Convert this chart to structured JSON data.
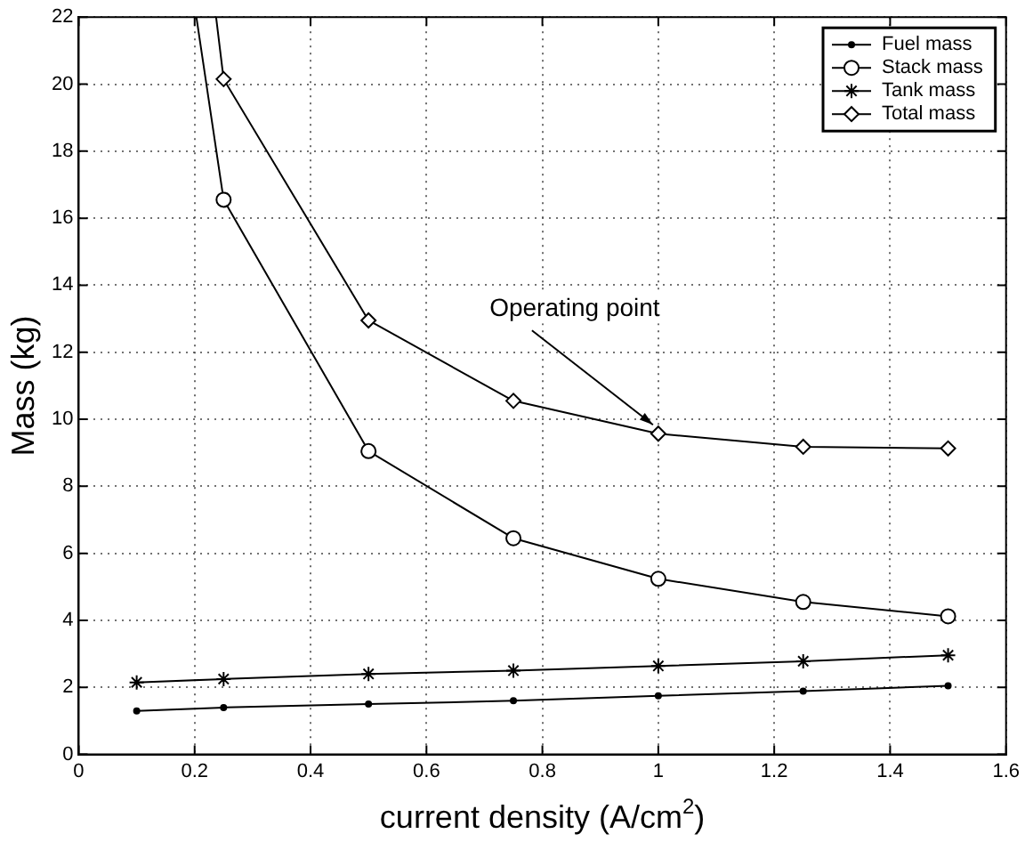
{
  "chart_data": {
    "type": "line",
    "xlabel": "current density (A/cm$^{2}$)",
    "ylabel": "Mass (kg)",
    "xlim": [
      0,
      1.6
    ],
    "xticks": [
      0,
      0.2,
      0.4,
      0.6,
      0.8,
      1,
      1.2,
      1.4,
      1.6
    ],
    "ylim": [
      0,
      22
    ],
    "yticks": [
      0,
      2,
      4,
      6,
      8,
      10,
      12,
      14,
      16,
      18,
      20,
      22
    ],
    "grid": true,
    "legend": "top right",
    "line_style": "solid",
    "annotations": [
      {
        "text": "Operating point",
        "x": 1,
        "y": 9.57
      }
    ],
    "series": [
      {
        "name": "Fuel mass",
        "color": "#000000",
        "marker": "circle",
        "x": [
          0.1,
          0.25,
          0.5,
          0.75,
          1,
          1.25,
          1.5
        ],
        "values": [
          1.3,
          1.4,
          1.5,
          1.6,
          1.75,
          1.89,
          2.05
        ]
      },
      {
        "name": "Stack mass",
        "color": "#000000",
        "marker": "circle",
        "x": [
          0.203,
          0.25,
          0.5,
          0.75,
          1,
          1.25,
          1.5
        ],
        "values": [
          22,
          16.55,
          9.05,
          6.45,
          5.24,
          4.55,
          4.12
        ]
      },
      {
        "name": "Tank mass",
        "color": "#000000",
        "marker": "cross",
        "x": [
          0.1,
          0.25,
          0.5,
          0.75,
          1,
          1.25,
          1.5
        ],
        "values": [
          2.15,
          2.25,
          2.4,
          2.5,
          2.64,
          2.78,
          2.96
        ]
      },
      {
        "name": "Total mass",
        "color": "#000000",
        "marker": "diamond",
        "x": [
          0.237,
          0.25,
          0.5,
          0.75,
          1,
          1.25,
          1.5
        ],
        "values": [
          22,
          20.15,
          12.95,
          10.55,
          9.57,
          9.18,
          9.13
        ]
      }
    ]
  }
}
